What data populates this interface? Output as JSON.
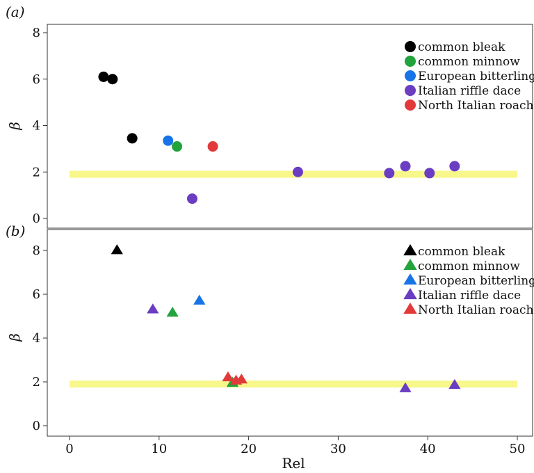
{
  "chart_data": [
    {
      "type": "scatter",
      "panel_label": "(a)",
      "marker": "circle",
      "ylabel": "β",
      "xlabel": "",
      "xlim": [
        -2,
        52
      ],
      "ylim": [
        -0.3,
        8.5
      ],
      "yticks": [
        0,
        2,
        4,
        6,
        8
      ],
      "xticks": [],
      "grid": false,
      "legend": "top-right",
      "reference_band": {
        "y": 1.9,
        "x_range": [
          0,
          50
        ],
        "color": "#f7f78a"
      },
      "series": [
        {
          "name": "common bleak",
          "color": "#000000",
          "points": [
            [
              3.8,
              6.1
            ],
            [
              4.8,
              6.0
            ],
            [
              7.0,
              3.45
            ]
          ]
        },
        {
          "name": "common minnow",
          "color": "#22a33c",
          "points": [
            [
              12.0,
              3.1
            ]
          ]
        },
        {
          "name": "European bitterling",
          "color": "#1873e6",
          "points": [
            [
              11.0,
              3.35
            ]
          ]
        },
        {
          "name": "Italian riffle dace",
          "color": "#6a3dc2",
          "points": [
            [
              13.7,
              0.85
            ],
            [
              25.5,
              2.0
            ],
            [
              35.7,
              1.95
            ],
            [
              37.5,
              2.25
            ],
            [
              40.2,
              1.95
            ],
            [
              43.0,
              2.25
            ]
          ]
        },
        {
          "name": "North Italian roach",
          "color": "#e23a3a",
          "points": [
            [
              16.0,
              3.1
            ]
          ]
        }
      ]
    },
    {
      "type": "scatter",
      "panel_label": "(b)",
      "marker": "triangle",
      "ylabel": "β",
      "xlabel": "Rel",
      "xlim": [
        -2,
        52
      ],
      "ylim": [
        -0.3,
        9.0
      ],
      "yticks": [
        0,
        2,
        4,
        6,
        8
      ],
      "xticks": [
        0,
        10,
        20,
        30,
        40,
        50
      ],
      "grid": false,
      "legend": "top-right",
      "reference_band": {
        "y": 1.9,
        "x_range": [
          0,
          50
        ],
        "color": "#f7f78a"
      },
      "series": [
        {
          "name": "common bleak",
          "color": "#000000",
          "points": [
            [
              5.3,
              8.0
            ]
          ]
        },
        {
          "name": "common minnow",
          "color": "#22a33c",
          "points": [
            [
              11.5,
              5.15
            ],
            [
              18.2,
              1.95
            ]
          ]
        },
        {
          "name": "European bitterling",
          "color": "#1873e6",
          "points": [
            [
              14.5,
              5.7
            ]
          ]
        },
        {
          "name": "Italian riffle dace",
          "color": "#6a3dc2",
          "points": [
            [
              9.3,
              5.3
            ],
            [
              37.5,
              1.7
            ],
            [
              43.0,
              1.85
            ]
          ]
        },
        {
          "name": "North Italian roach",
          "color": "#e23a3a",
          "points": [
            [
              17.7,
              2.2
            ],
            [
              18.6,
              2.05
            ],
            [
              19.2,
              2.1
            ]
          ]
        }
      ]
    }
  ]
}
